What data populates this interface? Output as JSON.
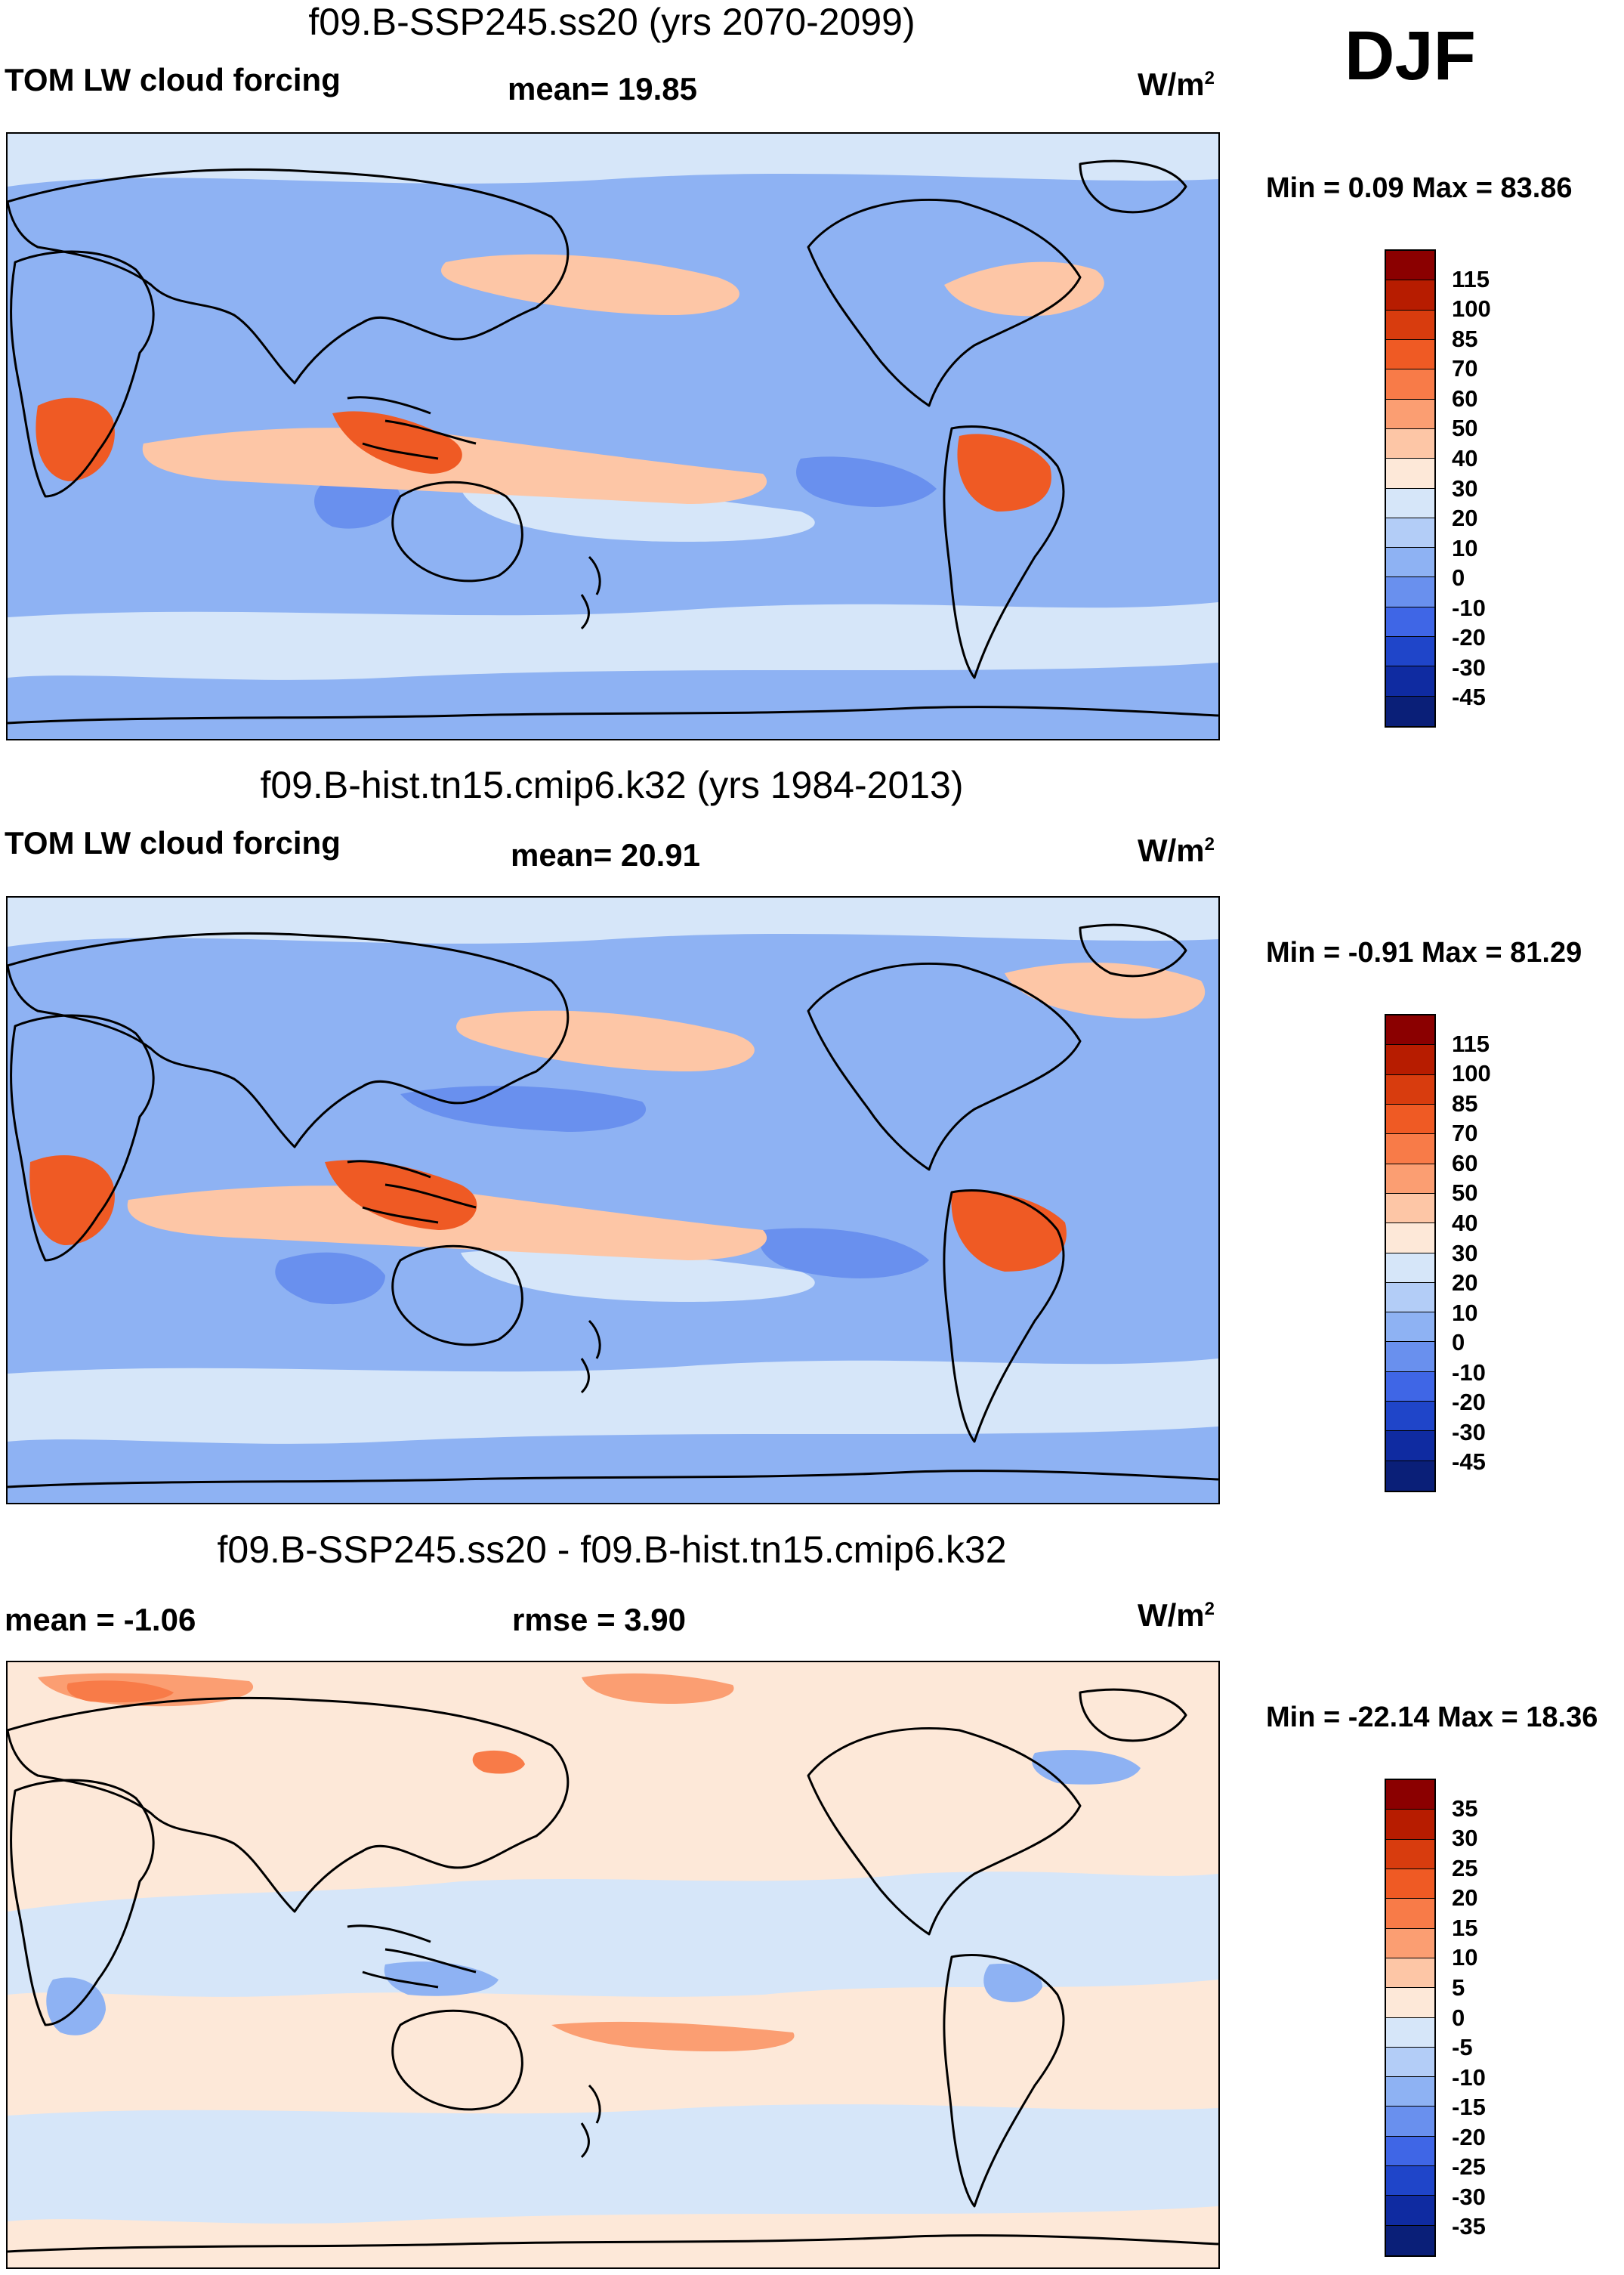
{
  "season": "DJF",
  "units": {
    "base": "W/m",
    "exp": "2"
  },
  "panels": [
    {
      "title": "f09.B-SSP245.ss20 (yrs 2070-2099)",
      "left_label": "TOM LW cloud forcing",
      "center_label": "mean=  19.85",
      "min_max": "Min =   0.09 Max =  83.86",
      "colorbar": {
        "labels": [
          "115",
          "100",
          "85",
          "70",
          "60",
          "50",
          "40",
          "30",
          "20",
          "10",
          "0",
          "-10",
          "-20",
          "-30",
          "-45"
        ],
        "colors": [
          "#8b0000",
          "#b71c00",
          "#d83c0e",
          "#ef5a24",
          "#f87b48",
          "#fb9e72",
          "#fdc6a6",
          "#fde8d8",
          "#d6e6f9",
          "#b3cdf7",
          "#8eb2f3",
          "#6990ee",
          "#3f66e6",
          "#1f45c9",
          "#0f2ba1",
          "#0a1f78"
        ]
      },
      "map": {
        "background": "#8eb2f3",
        "hot_spot": "#ef5a24",
        "warm": "#fdc6a6",
        "light": "#d6e6f9",
        "cool": "#6990ee"
      }
    },
    {
      "title": "f09.B-hist.tn15.cmip6.k32 (yrs 1984-2013)",
      "left_label": "TOM LW cloud forcing",
      "center_label": "mean=  20.91",
      "min_max": "Min =  -0.91 Max =  81.29",
      "colorbar": {
        "labels": [
          "115",
          "100",
          "85",
          "70",
          "60",
          "50",
          "40",
          "30",
          "20",
          "10",
          "0",
          "-10",
          "-20",
          "-30",
          "-45"
        ],
        "colors": [
          "#8b0000",
          "#b71c00",
          "#d83c0e",
          "#ef5a24",
          "#f87b48",
          "#fb9e72",
          "#fdc6a6",
          "#fde8d8",
          "#d6e6f9",
          "#b3cdf7",
          "#8eb2f3",
          "#6990ee",
          "#3f66e6",
          "#1f45c9",
          "#0f2ba1",
          "#0a1f78"
        ]
      },
      "map": {
        "background": "#8eb2f3",
        "hot_spot": "#ef5a24",
        "warm": "#fdc6a6",
        "light": "#d6e6f9",
        "cool": "#6990ee"
      }
    },
    {
      "title": "f09.B-SSP245.ss20 - f09.B-hist.tn15.cmip6.k32",
      "left_label": "mean =  -1.06",
      "center_label": "rmse =    3.90",
      "min_max": "Min = -22.14 Max =  18.36",
      "colorbar": {
        "labels": [
          "35",
          "30",
          "25",
          "20",
          "15",
          "10",
          "5",
          "0",
          "-5",
          "-10",
          "-15",
          "-20",
          "-25",
          "-30",
          "-35"
        ],
        "colors": [
          "#8b0000",
          "#b71c00",
          "#d83c0e",
          "#ef5a24",
          "#f87b48",
          "#fb9e72",
          "#fdc6a6",
          "#fde8d8",
          "#d6e6f9",
          "#b3cdf7",
          "#8eb2f3",
          "#6990ee",
          "#3f66e6",
          "#1f45c9",
          "#0f2ba1",
          "#0a1f78"
        ]
      },
      "map": {
        "background": "#fde8d8",
        "hot_spot": "#f87b48",
        "warm": "#fb9e72",
        "light": "#d6e6f9",
        "cool": "#8eb2f3"
      }
    }
  ]
}
